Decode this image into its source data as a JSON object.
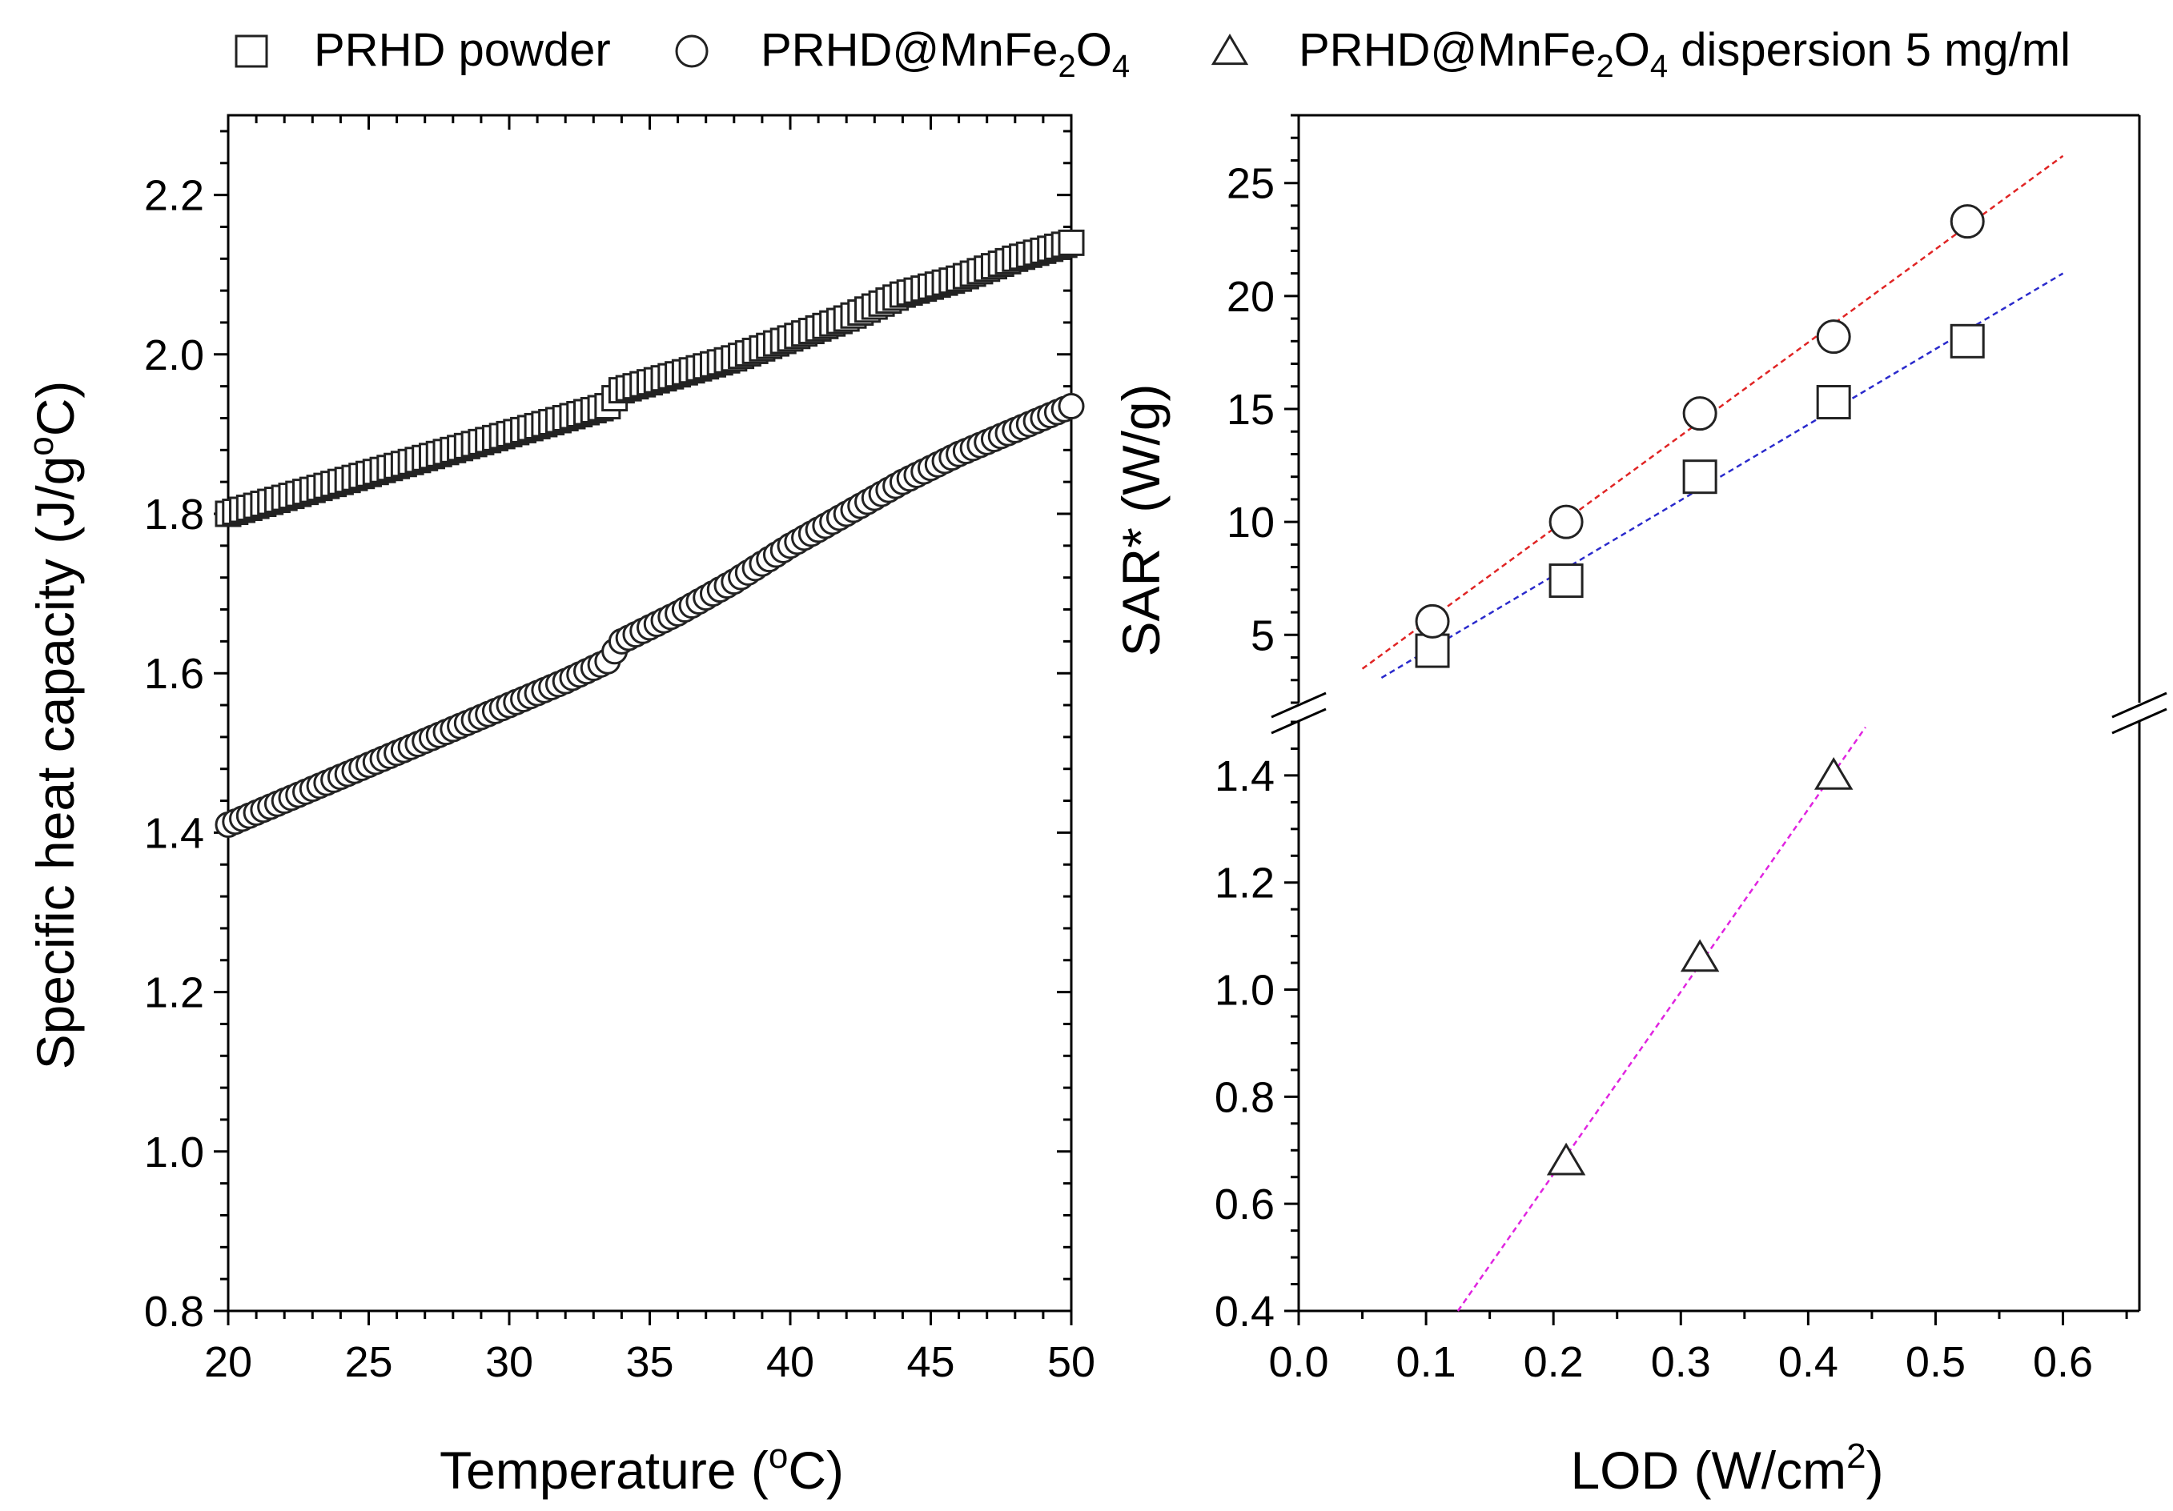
{
  "legend": [
    {
      "marker": "square",
      "label": "PRHD powder"
    },
    {
      "marker": "circle",
      "label": "PRHD@MnFe₂O₄"
    },
    {
      "marker": "triangle",
      "label": "PRHD@MnFe₂O₄ dispersion 5 mg/ml"
    }
  ],
  "chart_data": [
    {
      "type": "scatter",
      "title": "",
      "xlabel": "Temperature (°C)",
      "ylabel": "Specific heat capacity (J/g°C)",
      "xlim": [
        20,
        50
      ],
      "ylim": [
        0.8,
        2.3
      ],
      "xticks": [
        "20",
        "25",
        "30",
        "35",
        "40",
        "45",
        "50"
      ],
      "yticks": [
        "0.8",
        "1.0",
        "1.2",
        "1.4",
        "1.6",
        "1.8",
        "2.0",
        "2.2"
      ],
      "series": [
        {
          "name": "PRHD powder",
          "marker": "square",
          "x": [
            20,
            22,
            24,
            26,
            28,
            30,
            32,
            33.5,
            34,
            36,
            38,
            40,
            42,
            44,
            46,
            48,
            50
          ],
          "y": [
            1.8,
            1.82,
            1.84,
            1.86,
            1.88,
            1.9,
            1.92,
            1.935,
            1.955,
            1.975,
            1.995,
            2.02,
            2.045,
            2.075,
            2.095,
            2.12,
            2.14
          ]
        },
        {
          "name": "PRHD@MnFe₂O₄",
          "marker": "circle",
          "x": [
            20,
            22,
            24,
            26,
            28,
            30,
            32,
            33.5,
            34,
            36,
            38,
            40,
            42,
            44,
            46,
            48,
            50
          ],
          "y": [
            1.41,
            1.44,
            1.47,
            1.5,
            1.53,
            1.56,
            1.59,
            1.615,
            1.64,
            1.675,
            1.715,
            1.76,
            1.8,
            1.84,
            1.875,
            1.905,
            1.935
          ]
        }
      ]
    },
    {
      "type": "scatter",
      "title": "",
      "xlabel": "LOD (W/cm²)",
      "ylabel": "SAR* (W/g)",
      "xlim": [
        0.0,
        0.66
      ],
      "xticks": [
        "0.0",
        "0.1",
        "0.2",
        "0.3",
        "0.4",
        "0.5",
        "0.6"
      ],
      "upper_segment": {
        "ylim": [
          2.0,
          28.0
        ],
        "yticks": [
          "5",
          "10",
          "15",
          "20",
          "25"
        ]
      },
      "lower_segment": {
        "ylim": [
          0.4,
          1.5
        ],
        "yticks": [
          "0.4",
          "0.6",
          "0.8",
          "1.0",
          "1.2",
          "1.4"
        ]
      },
      "series": [
        {
          "name": "PRHD powder",
          "marker": "square",
          "segment": "upper",
          "x": [
            0.105,
            0.21,
            0.315,
            0.42,
            0.525
          ],
          "y": [
            4.3,
            7.4,
            12.0,
            15.3,
            18.0
          ],
          "fit_line": {
            "color": "#2a2acc",
            "x": [
              0.065,
              0.6
            ],
            "y": [
              3.1,
              21.0
            ]
          }
        },
        {
          "name": "PRHD@MnFe₂O₄",
          "marker": "circle",
          "segment": "upper",
          "x": [
            0.105,
            0.21,
            0.315,
            0.42,
            0.525
          ],
          "y": [
            5.6,
            10.0,
            14.8,
            18.2,
            23.3
          ],
          "fit_line": {
            "color": "#e02424",
            "x": [
              0.05,
              0.6
            ],
            "y": [
              3.5,
              26.2
            ]
          }
        },
        {
          "name": "PRHD@MnFe₂O₄ dispersion 5 mg/ml",
          "marker": "triangle",
          "segment": "lower",
          "x": [
            0.21,
            0.315,
            0.42
          ],
          "y": [
            0.68,
            1.06,
            1.4
          ],
          "fit_line": {
            "color": "#e024e0",
            "x": [
              0.125,
              0.445
            ],
            "y": [
              0.4,
              1.49
            ]
          }
        }
      ]
    }
  ]
}
